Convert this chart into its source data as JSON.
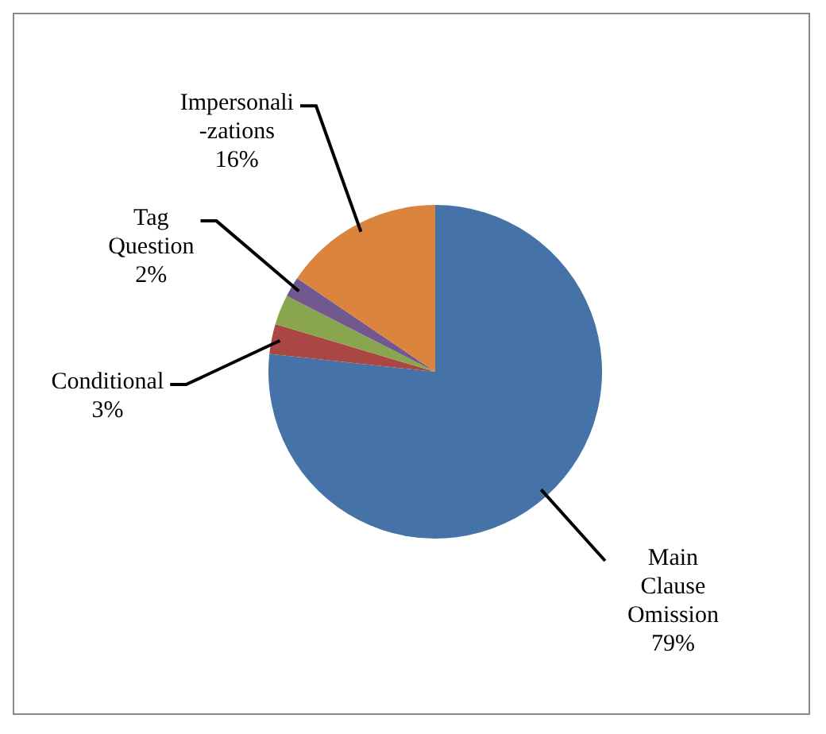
{
  "chart_data": {
    "type": "pie",
    "categories": [
      "Main\nClause\nOmission",
      "Conditional",
      null,
      "Tag\nQuestion",
      "Impersonali\n-zations"
    ],
    "values": [
      79,
      3,
      3,
      2,
      16
    ],
    "value_labels": [
      "79%",
      "3%",
      null,
      "2%",
      "16%"
    ],
    "colors": [
      "#4572a7",
      "#aa4643",
      "#89a54e",
      "#71588f",
      "#db843d"
    ],
    "legend": false
  }
}
